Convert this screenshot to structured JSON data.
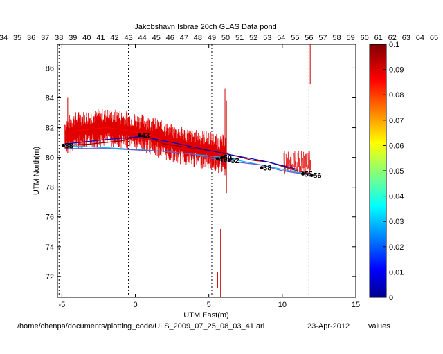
{
  "chart_data": {
    "type": "line",
    "title": "Jakobshavn Isbrae 20ch GLAS Data pond",
    "xlabel": "UTM East(m)",
    "ylabel": "UTM North(m)",
    "xlim": [
      -5.3,
      15
    ],
    "ylim": [
      70.6,
      87.6
    ],
    "xticks": [
      -5,
      0,
      5,
      10,
      15
    ],
    "yticks": [
      72,
      74,
      76,
      78,
      80,
      82,
      84,
      86
    ],
    "top_axis": {
      "range": [
        34,
        65
      ],
      "ticks": [
        34,
        35,
        36,
        37,
        38,
        39,
        40,
        41,
        42,
        43,
        44,
        45,
        46,
        47,
        48,
        49,
        50,
        51,
        52,
        53,
        54,
        55,
        56,
        57,
        58,
        59,
        60,
        61,
        62,
        63,
        64,
        65
      ]
    },
    "dashed_verticals_top_units": [
      38,
      43,
      49,
      56
    ],
    "grid": false,
    "colorbar": {
      "label": "values",
      "range": [
        0,
        0.1
      ],
      "ticks": [
        "0",
        "0.01",
        "0.02",
        "0.03",
        "0.04",
        "0.05",
        "0.06",
        "0.07",
        "0.08",
        "0.09",
        "0.1"
      ],
      "colormap": "jet"
    },
    "series": [
      {
        "x": [
          -4.8,
          -4,
          -3,
          -2,
          -1,
          0,
          1,
          2,
          3,
          4,
          5,
          5.7,
          6.3
        ],
        "y": [
          81.4,
          81.8,
          81.9,
          82,
          81.9,
          81.7,
          81.5,
          81.1,
          80.8,
          80.6,
          80.5,
          80.2,
          80.3
        ],
        "color": "#ff0000"
      },
      {
        "x": [
          -4.8,
          -3,
          -1,
          0.5,
          2,
          4,
          6,
          8,
          9,
          11,
          12
        ],
        "y": [
          80.8,
          80.9,
          81.1,
          81.5,
          80.9,
          80.6,
          80.3,
          79.8,
          79.7,
          79.1,
          78.9
        ],
        "color": "#8b0000"
      },
      {
        "x": [
          -4.8,
          -3,
          -1,
          0.5,
          2,
          4,
          6,
          8,
          9,
          11,
          12
        ],
        "y": [
          80.8,
          80.7,
          80.6,
          80.5,
          80.4,
          80.2,
          80,
          79.6,
          79.4,
          79,
          78.8
        ],
        "color": "#00b4ff"
      },
      {
        "x": [
          -4.8,
          -2,
          0.5,
          3,
          5.8,
          8,
          9,
          11
        ],
        "y": [
          80.9,
          81.2,
          81.4,
          80.9,
          80.3,
          79.9,
          79.7,
          79.2
        ],
        "color": "#0000cd"
      },
      {
        "x": [
          -4.8,
          -2,
          0,
          2,
          4,
          5.8,
          8.5,
          10,
          12
        ],
        "y": [
          80.6,
          80.6,
          80.5,
          80.4,
          80.2,
          79.8,
          79.5,
          79.1,
          78.8
        ],
        "color": "#6a5acd"
      }
    ],
    "vertical_spikes": [
      {
        "x": 6.1,
        "y": [
          78.8,
          84.6
        ]
      },
      {
        "x": 6.2,
        "y": [
          77.6,
          83.8
        ]
      },
      {
        "x": 5.8,
        "y": [
          70.6,
          75.2
        ]
      },
      {
        "x": 5.6,
        "y": [
          71.2,
          72.3
        ]
      },
      {
        "x": 11.9,
        "y": [
          84.9,
          87.6
        ]
      },
      {
        "x": -4.6,
        "y": [
          80.3,
          84.0
        ]
      }
    ],
    "annotations": [
      {
        "text": "38",
        "x": -4.9,
        "y": 80.8
      },
      {
        "text": "43",
        "x": 0.3,
        "y": 81.5
      },
      {
        "text": "50",
        "x": 5.9,
        "y": 80
      },
      {
        "text": "52",
        "x": 6.4,
        "y": 79.8
      },
      {
        "text": "49",
        "x": 5.6,
        "y": 79.9
      },
      {
        "text": "38",
        "x": 8.6,
        "y": 79.3
      },
      {
        "text": "55",
        "x": 11.4,
        "y": 78.9
      },
      {
        "text": "56",
        "x": 12.0,
        "y": 78.8
      }
    ]
  },
  "footer": {
    "path": "/home/chenpa/documents/plotting_code/ULS_2009_07_25_08_03_41.arl",
    "date": "23-Apr-2012"
  }
}
